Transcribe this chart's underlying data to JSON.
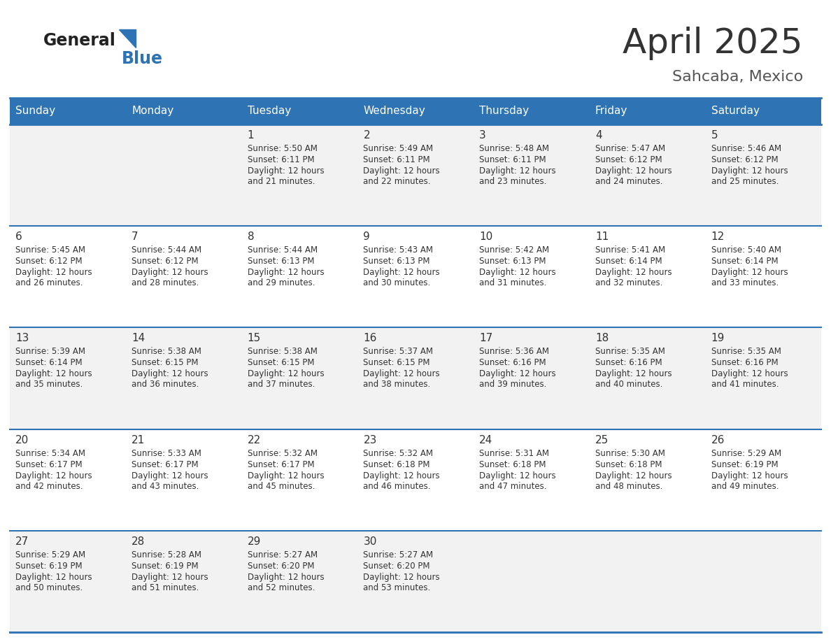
{
  "title": "April 2025",
  "subtitle": "Sahcaba, Mexico",
  "days_of_week": [
    "Sunday",
    "Monday",
    "Tuesday",
    "Wednesday",
    "Thursday",
    "Friday",
    "Saturday"
  ],
  "header_bg": "#2E74B5",
  "header_text": "#FFFFFF",
  "cell_bg_odd": "#F2F2F2",
  "cell_bg_even": "#FFFFFF",
  "border_color": "#2E74B5",
  "text_color": "#333333",
  "subtitle_color": "#555555",
  "logo_general_color": "#222222",
  "logo_blue_color": "#2E74B5",
  "calendar": [
    [
      {
        "day": "",
        "sunrise": "",
        "sunset": "",
        "daylight": ""
      },
      {
        "day": "",
        "sunrise": "",
        "sunset": "",
        "daylight": ""
      },
      {
        "day": "1",
        "sunrise": "Sunrise: 5:50 AM",
        "sunset": "Sunset: 6:11 PM",
        "daylight": "Daylight: 12 hours\nand 21 minutes."
      },
      {
        "day": "2",
        "sunrise": "Sunrise: 5:49 AM",
        "sunset": "Sunset: 6:11 PM",
        "daylight": "Daylight: 12 hours\nand 22 minutes."
      },
      {
        "day": "3",
        "sunrise": "Sunrise: 5:48 AM",
        "sunset": "Sunset: 6:11 PM",
        "daylight": "Daylight: 12 hours\nand 23 minutes."
      },
      {
        "day": "4",
        "sunrise": "Sunrise: 5:47 AM",
        "sunset": "Sunset: 6:12 PM",
        "daylight": "Daylight: 12 hours\nand 24 minutes."
      },
      {
        "day": "5",
        "sunrise": "Sunrise: 5:46 AM",
        "sunset": "Sunset: 6:12 PM",
        "daylight": "Daylight: 12 hours\nand 25 minutes."
      }
    ],
    [
      {
        "day": "6",
        "sunrise": "Sunrise: 5:45 AM",
        "sunset": "Sunset: 6:12 PM",
        "daylight": "Daylight: 12 hours\nand 26 minutes."
      },
      {
        "day": "7",
        "sunrise": "Sunrise: 5:44 AM",
        "sunset": "Sunset: 6:12 PM",
        "daylight": "Daylight: 12 hours\nand 28 minutes."
      },
      {
        "day": "8",
        "sunrise": "Sunrise: 5:44 AM",
        "sunset": "Sunset: 6:13 PM",
        "daylight": "Daylight: 12 hours\nand 29 minutes."
      },
      {
        "day": "9",
        "sunrise": "Sunrise: 5:43 AM",
        "sunset": "Sunset: 6:13 PM",
        "daylight": "Daylight: 12 hours\nand 30 minutes."
      },
      {
        "day": "10",
        "sunrise": "Sunrise: 5:42 AM",
        "sunset": "Sunset: 6:13 PM",
        "daylight": "Daylight: 12 hours\nand 31 minutes."
      },
      {
        "day": "11",
        "sunrise": "Sunrise: 5:41 AM",
        "sunset": "Sunset: 6:14 PM",
        "daylight": "Daylight: 12 hours\nand 32 minutes."
      },
      {
        "day": "12",
        "sunrise": "Sunrise: 5:40 AM",
        "sunset": "Sunset: 6:14 PM",
        "daylight": "Daylight: 12 hours\nand 33 minutes."
      }
    ],
    [
      {
        "day": "13",
        "sunrise": "Sunrise: 5:39 AM",
        "sunset": "Sunset: 6:14 PM",
        "daylight": "Daylight: 12 hours\nand 35 minutes."
      },
      {
        "day": "14",
        "sunrise": "Sunrise: 5:38 AM",
        "sunset": "Sunset: 6:15 PM",
        "daylight": "Daylight: 12 hours\nand 36 minutes."
      },
      {
        "day": "15",
        "sunrise": "Sunrise: 5:38 AM",
        "sunset": "Sunset: 6:15 PM",
        "daylight": "Daylight: 12 hours\nand 37 minutes."
      },
      {
        "day": "16",
        "sunrise": "Sunrise: 5:37 AM",
        "sunset": "Sunset: 6:15 PM",
        "daylight": "Daylight: 12 hours\nand 38 minutes."
      },
      {
        "day": "17",
        "sunrise": "Sunrise: 5:36 AM",
        "sunset": "Sunset: 6:16 PM",
        "daylight": "Daylight: 12 hours\nand 39 minutes."
      },
      {
        "day": "18",
        "sunrise": "Sunrise: 5:35 AM",
        "sunset": "Sunset: 6:16 PM",
        "daylight": "Daylight: 12 hours\nand 40 minutes."
      },
      {
        "day": "19",
        "sunrise": "Sunrise: 5:35 AM",
        "sunset": "Sunset: 6:16 PM",
        "daylight": "Daylight: 12 hours\nand 41 minutes."
      }
    ],
    [
      {
        "day": "20",
        "sunrise": "Sunrise: 5:34 AM",
        "sunset": "Sunset: 6:17 PM",
        "daylight": "Daylight: 12 hours\nand 42 minutes."
      },
      {
        "day": "21",
        "sunrise": "Sunrise: 5:33 AM",
        "sunset": "Sunset: 6:17 PM",
        "daylight": "Daylight: 12 hours\nand 43 minutes."
      },
      {
        "day": "22",
        "sunrise": "Sunrise: 5:32 AM",
        "sunset": "Sunset: 6:17 PM",
        "daylight": "Daylight: 12 hours\nand 45 minutes."
      },
      {
        "day": "23",
        "sunrise": "Sunrise: 5:32 AM",
        "sunset": "Sunset: 6:18 PM",
        "daylight": "Daylight: 12 hours\nand 46 minutes."
      },
      {
        "day": "24",
        "sunrise": "Sunrise: 5:31 AM",
        "sunset": "Sunset: 6:18 PM",
        "daylight": "Daylight: 12 hours\nand 47 minutes."
      },
      {
        "day": "25",
        "sunrise": "Sunrise: 5:30 AM",
        "sunset": "Sunset: 6:18 PM",
        "daylight": "Daylight: 12 hours\nand 48 minutes."
      },
      {
        "day": "26",
        "sunrise": "Sunrise: 5:29 AM",
        "sunset": "Sunset: 6:19 PM",
        "daylight": "Daylight: 12 hours\nand 49 minutes."
      }
    ],
    [
      {
        "day": "27",
        "sunrise": "Sunrise: 5:29 AM",
        "sunset": "Sunset: 6:19 PM",
        "daylight": "Daylight: 12 hours\nand 50 minutes."
      },
      {
        "day": "28",
        "sunrise": "Sunrise: 5:28 AM",
        "sunset": "Sunset: 6:19 PM",
        "daylight": "Daylight: 12 hours\nand 51 minutes."
      },
      {
        "day": "29",
        "sunrise": "Sunrise: 5:27 AM",
        "sunset": "Sunset: 6:20 PM",
        "daylight": "Daylight: 12 hours\nand 52 minutes."
      },
      {
        "day": "30",
        "sunrise": "Sunrise: 5:27 AM",
        "sunset": "Sunset: 6:20 PM",
        "daylight": "Daylight: 12 hours\nand 53 minutes."
      },
      {
        "day": "",
        "sunrise": "",
        "sunset": "",
        "daylight": ""
      },
      {
        "day": "",
        "sunrise": "",
        "sunset": "",
        "daylight": ""
      },
      {
        "day": "",
        "sunrise": "",
        "sunset": "",
        "daylight": ""
      }
    ]
  ]
}
